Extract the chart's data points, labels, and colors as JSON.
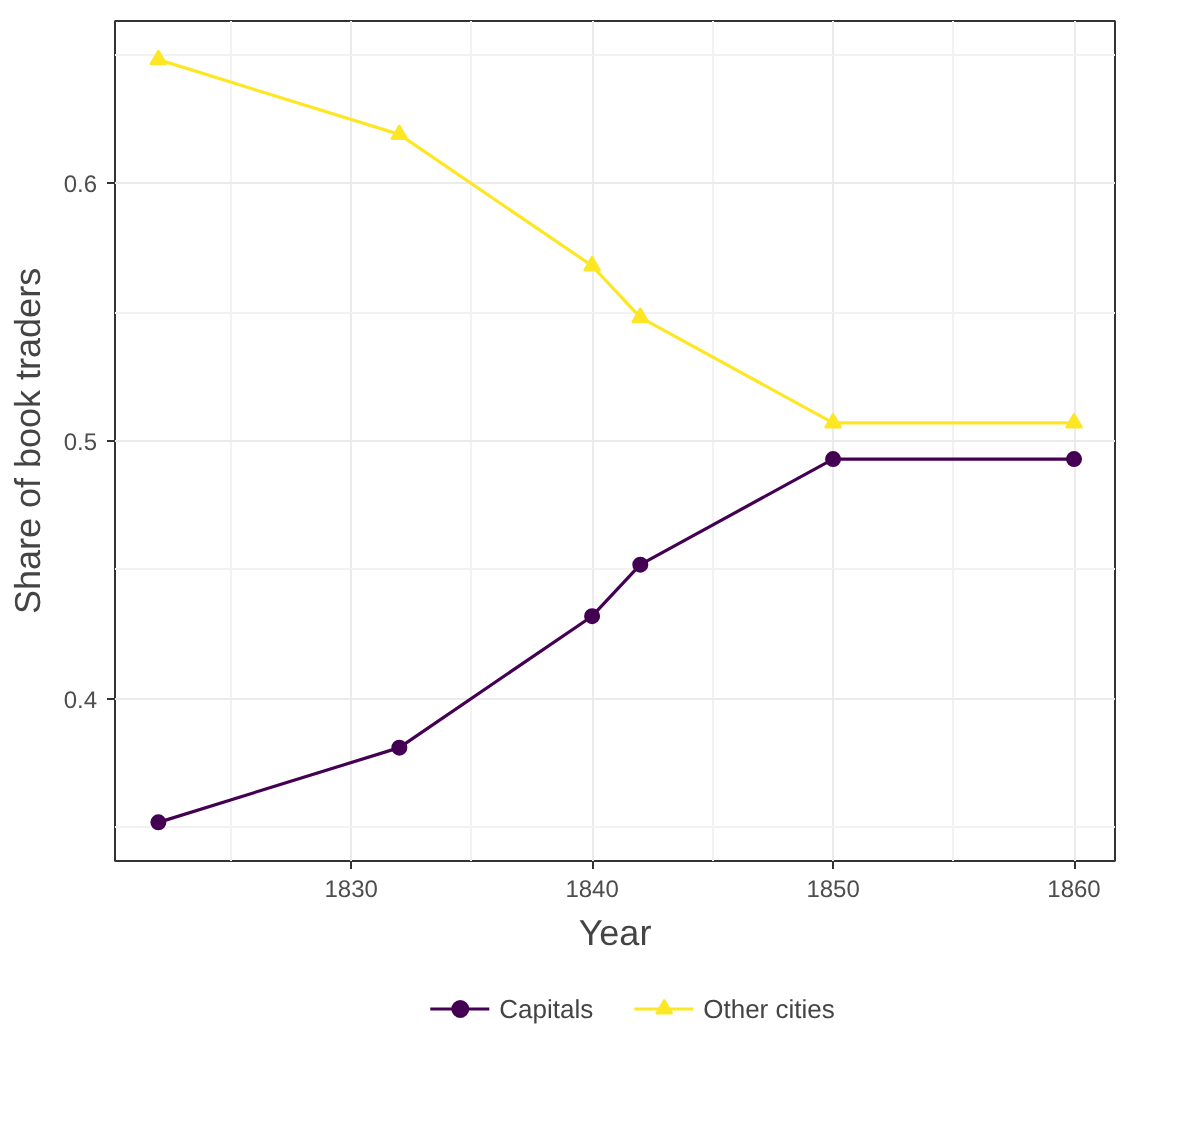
{
  "chart_data": {
    "type": "line",
    "xlabel": "Year",
    "ylabel": "Share of book traders",
    "x": [
      1822,
      1832,
      1840,
      1842,
      1850,
      1860
    ],
    "series": [
      {
        "name": "Capitals",
        "color": "#440154",
        "marker": "circle",
        "values": [
          0.352,
          0.381,
          0.432,
          0.452,
          0.493,
          0.493
        ]
      },
      {
        "name": "Other cities",
        "color": "#fde725",
        "marker": "triangle",
        "values": [
          0.648,
          0.619,
          0.568,
          0.548,
          0.507,
          0.507
        ]
      }
    ],
    "xlim": [
      1820.2,
      1861.7
    ],
    "ylim": [
      0.337,
      0.663
    ],
    "xticks": [
      1830,
      1840,
      1850,
      1860
    ],
    "yticks": [
      0.4,
      0.5,
      0.6
    ],
    "grid": true,
    "legend": "bottom",
    "line_style": "solid"
  }
}
